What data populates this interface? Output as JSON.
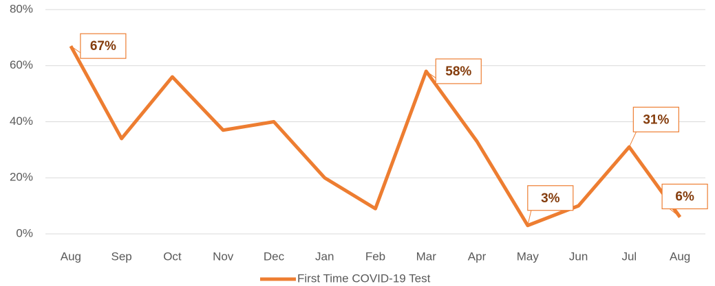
{
  "chart_data": {
    "type": "line",
    "categories": [
      "Aug",
      "Sep",
      "Oct",
      "Nov",
      "Dec",
      "Jan",
      "Feb",
      "Mar",
      "Apr",
      "May",
      "Jun",
      "Jul",
      "Aug"
    ],
    "series": [
      {
        "name": "First Time COVID-19 Test",
        "color": "#ed7d31",
        "values": [
          67,
          34,
          56,
          37,
          40,
          20,
          9,
          58,
          33,
          3,
          10,
          31,
          6
        ],
        "value_labels": [
          "67%",
          null,
          null,
          null,
          null,
          null,
          null,
          "58%",
          null,
          "3%",
          null,
          "31%",
          "6%"
        ]
      }
    ],
    "ylim": [
      0,
      80
    ],
    "yticks": [
      {
        "value": 0,
        "label": "0%"
      },
      {
        "value": 20,
        "label": "20%"
      },
      {
        "value": 40,
        "label": "40%"
      },
      {
        "value": 60,
        "label": "60%"
      },
      {
        "value": 80,
        "label": "80%"
      }
    ],
    "grid": true,
    "legend": "bottom"
  }
}
